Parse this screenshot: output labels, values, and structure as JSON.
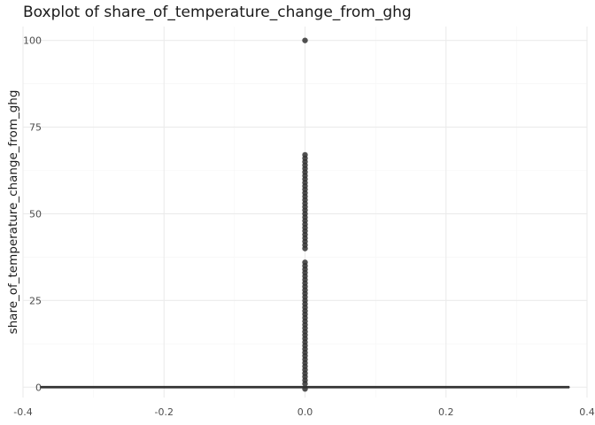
{
  "chart_data": {
    "type": "boxplot",
    "title": "Boxplot of share_of_temperature_change_from_ghg",
    "xlabel": "",
    "ylabel": "share_of_temperature_change_from_ghg",
    "xlim": [
      -0.4,
      0.4
    ],
    "ylim": [
      -3,
      104
    ],
    "x_ticks": [
      -0.4,
      -0.2,
      0.0,
      0.2,
      0.4
    ],
    "x_tick_labels": [
      "-0.4",
      "-0.2",
      "0.0",
      "0.2",
      "0.4"
    ],
    "y_ticks": [
      0,
      25,
      50,
      75,
      100
    ],
    "y_tick_labels": [
      "0",
      "25",
      "50",
      "75",
      "100"
    ],
    "grid": true,
    "box": {
      "x": 0.0,
      "box_width": 0.75,
      "q1": 0,
      "median": 0,
      "q3": 0,
      "whisker_low": 0,
      "whisker_high": 0
    },
    "outliers_y": [
      100,
      67,
      66,
      65,
      64,
      63,
      62,
      61,
      60,
      59,
      58,
      57,
      56,
      55,
      54,
      53,
      52,
      51,
      50,
      49,
      48,
      47,
      46,
      45,
      44,
      43,
      42,
      41,
      40,
      36,
      35,
      34,
      33,
      32,
      31,
      30,
      29,
      28,
      27,
      26,
      25,
      24,
      23,
      22,
      21,
      20,
      19,
      18,
      17,
      16,
      15,
      14,
      13,
      12,
      11,
      10,
      9,
      8,
      7,
      6,
      5,
      4,
      3,
      2,
      1,
      -0.5
    ],
    "colors": {
      "box": "#333333",
      "outlier": "#333333",
      "grid_major": "#ebebeb",
      "grid_minor": "#f5f5f5"
    }
  }
}
